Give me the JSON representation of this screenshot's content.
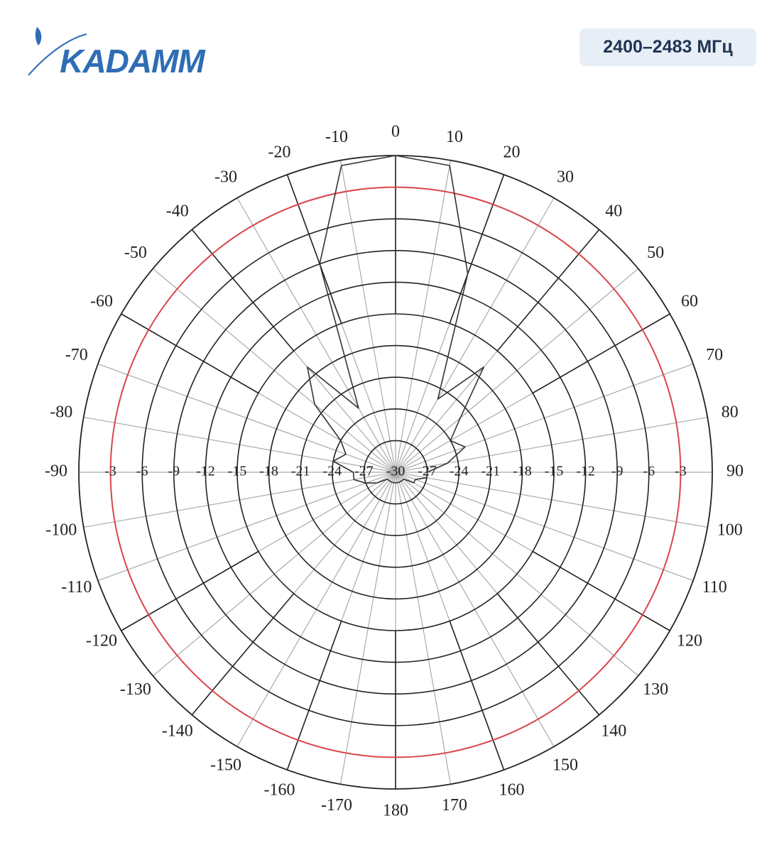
{
  "header": {
    "logo": "KADAMM",
    "badge": "2400–2483 МГц"
  },
  "chart_data": {
    "type": "polar",
    "x": [
      -170,
      -160,
      -150,
      -140,
      -130,
      -120,
      -110,
      -100,
      -90,
      -80,
      -70,
      -60,
      -50,
      -40,
      -30,
      -20,
      -10,
      0,
      10,
      20,
      30,
      40,
      50,
      60,
      70,
      80,
      90,
      100,
      110,
      120,
      130,
      140,
      150,
      160,
      170,
      180
    ],
    "values": [
      -29,
      -29,
      -29,
      -29,
      -29,
      -28,
      -27,
      -26,
      -26,
      -24,
      -25,
      -24,
      -20,
      -17,
      -23,
      -9,
      -0.5,
      0,
      -0.5,
      -10,
      -22,
      -17,
      -22,
      -24,
      -23,
      -25,
      -27,
      -27,
      -28,
      -28,
      -29,
      -29,
      -29,
      -29,
      -29,
      -29
    ],
    "color": "#333333",
    "ylim": [
      -30,
      0
    ],
    "yticks": [
      -3,
      -6,
      -9,
      -12,
      -15,
      -18,
      -21,
      -24,
      -27,
      -30
    ],
    "xticks": [
      -170,
      -160,
      -150,
      -140,
      -130,
      -120,
      -110,
      -100,
      -90,
      -80,
      -70,
      -60,
      -50,
      -40,
      -30,
      -20,
      -10,
      0,
      10,
      20,
      30,
      40,
      50,
      60,
      70,
      80,
      90,
      100,
      110,
      120,
      130,
      140,
      150,
      160,
      170,
      180
    ],
    "reference_level": -3,
    "reference_color": "#d9464b"
  }
}
